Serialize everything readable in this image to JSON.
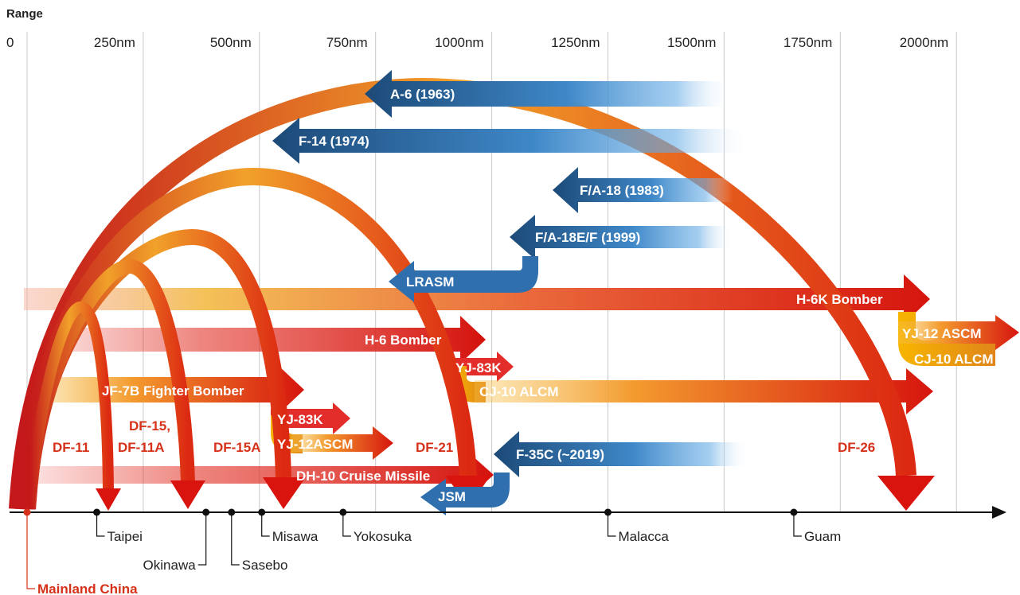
{
  "chart_data": {
    "type": "range-comparison",
    "axis_title": "Range",
    "x_ticks": [
      "0",
      "250nm",
      "500nm",
      "750nm",
      "1000nm",
      "1250nm",
      "1500nm",
      "1750nm",
      "2000nm"
    ],
    "locations": [
      {
        "name": "Mainland China",
        "range_nm": 0
      },
      {
        "name": "Taipei",
        "range_nm": 150
      },
      {
        "name": "Okinawa",
        "range_nm": 385
      },
      {
        "name": "Sasebo",
        "range_nm": 440
      },
      {
        "name": "Misawa",
        "range_nm": 505
      },
      {
        "name": "Yokosuka",
        "range_nm": 680
      },
      {
        "name": "Malacca",
        "range_nm": 1250
      },
      {
        "name": "Guam",
        "range_nm": 1650
      }
    ],
    "ballistic_missiles": [
      {
        "name": "DF-11",
        "range_nm": 180
      },
      {
        "name": "DF-15, DF-11A",
        "range_nm": 360
      },
      {
        "name": "DF-15A",
        "range_nm": 575
      },
      {
        "name": "DF-21",
        "range_nm": 960
      },
      {
        "name": "DF-26",
        "range_nm": 1950
      }
    ],
    "china_air_systems": [
      {
        "name": "H-6K Bomber",
        "range_nm": 1930
      },
      {
        "name": "YJ-12 ASCM",
        "range_nm": 2180
      },
      {
        "name": "CJ-10 ALCM",
        "range_nm": 2180
      },
      {
        "name": "H-6 Bomber",
        "range_nm": 995
      },
      {
        "name": "YJ-83K",
        "range_nm": 1070
      },
      {
        "name": "CJ-10 ALCM",
        "range_nm": 1990
      },
      {
        "name": "JF-7B Fighter Bomber",
        "range_nm": 600
      },
      {
        "name": "YJ-83K",
        "range_nm": 700
      },
      {
        "name": "YJ-12ASCM",
        "range_nm": 810
      },
      {
        "name": "DH-10 Cruise Missile",
        "range_nm": 1000
      }
    ],
    "us_navy_strike": [
      {
        "name": "A-6 (1963)",
        "range_nm": 755
      },
      {
        "name": "F-14 (1974)",
        "range_nm": 550
      },
      {
        "name": "F/A-18 (1983)",
        "range_nm": 1165
      },
      {
        "name": "F/A-18E/F (1999)",
        "range_nm": 1095
      },
      {
        "name": "LRASM",
        "range_nm": 815
      },
      {
        "name": "F-35C (~2019)",
        "range_nm": 1035
      },
      {
        "name": "JSM",
        "range_nm": 885
      }
    ],
    "colors": {
      "china": "#d91f10",
      "china_orange": "#f5a300",
      "us_navy": "#1f4e79",
      "us_navy_light": "#4f9ad6",
      "china_label": "#d63219"
    }
  }
}
